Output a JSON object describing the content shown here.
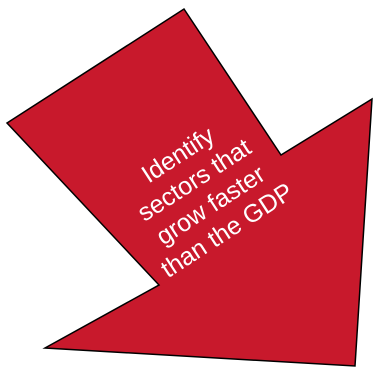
{
  "arrow": {
    "fill_color": "#c8192c",
    "stroke_color": "#000000",
    "lines": [
      "Identify",
      "sectors that",
      "grow faster",
      "than the GDP"
    ]
  }
}
